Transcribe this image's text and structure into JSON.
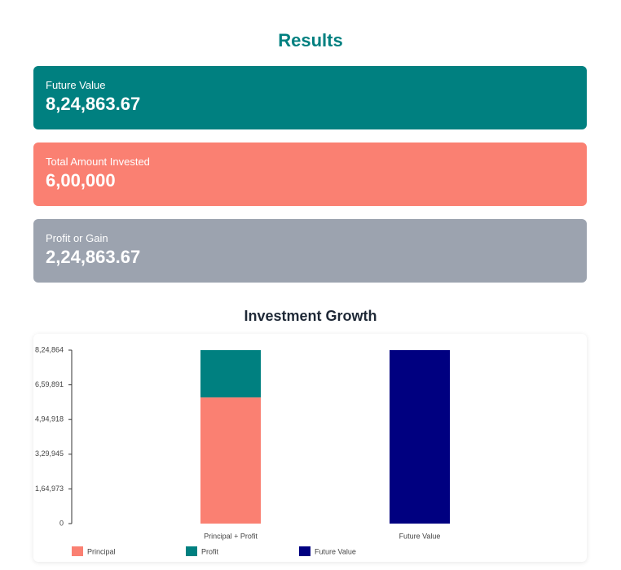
{
  "results": {
    "title": "Results",
    "cards": [
      {
        "label": "Future Value",
        "value": "8,24,863.67"
      },
      {
        "label": "Total Amount Invested",
        "value": "6,00,000"
      },
      {
        "label": "Profit or Gain",
        "value": "2,24,863.67"
      }
    ]
  },
  "chart_data": {
    "type": "stacked-bar",
    "title": "Investment Growth",
    "categories": [
      "Principal + Profit",
      "Future Value"
    ],
    "series": [
      {
        "name": "Principal",
        "color": "#fa8072",
        "values": [
          600000,
          null
        ]
      },
      {
        "name": "Profit",
        "color": "#008080",
        "values": [
          224863.67,
          null
        ]
      },
      {
        "name": "Future Value",
        "color": "#000080",
        "values": [
          null,
          824863.67
        ]
      }
    ],
    "ylim": [
      0,
      824864
    ],
    "yticks": [
      0,
      {
        "value": 164973,
        "label": "1,64,973"
      },
      {
        "value": 329945,
        "label": "3,29,945"
      },
      {
        "value": 494918,
        "label": "4,94,918"
      },
      {
        "value": 659891,
        "label": "6,59,891"
      },
      {
        "value": 824864,
        "label": "8,24,864"
      }
    ]
  }
}
